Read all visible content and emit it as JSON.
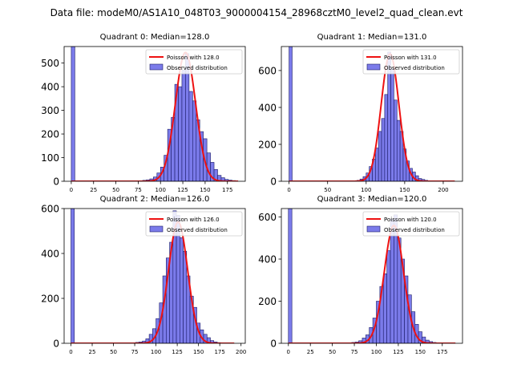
{
  "figure": {
    "suptitle": "Data file: modeM0/AS1A10_048T03_9000004154_28968cztM0_level2_quad_clean.evt",
    "colors": {
      "bar_fill": "#7b7bea",
      "bar_edge": "#1a1a66",
      "fit_line": "#ee1111",
      "axis": "#000000"
    }
  },
  "chart_data": [
    {
      "type": "bar",
      "title": "Quadrant 0: Median=128.0",
      "xlim": [
        -8,
        195
      ],
      "ylim": [
        0,
        570
      ],
      "xticks": [
        0,
        25,
        50,
        75,
        100,
        125,
        150,
        175
      ],
      "yticks": [
        0,
        100,
        200,
        300,
        400,
        500
      ],
      "bin_width": 4,
      "histogram": [
        {
          "x": 0,
          "count": 570
        },
        {
          "x": 80,
          "count": 4
        },
        {
          "x": 84,
          "count": 6
        },
        {
          "x": 88,
          "count": 10
        },
        {
          "x": 92,
          "count": 18
        },
        {
          "x": 96,
          "count": 35
        },
        {
          "x": 100,
          "count": 60
        },
        {
          "x": 104,
          "count": 110
        },
        {
          "x": 108,
          "count": 220
        },
        {
          "x": 112,
          "count": 270
        },
        {
          "x": 116,
          "count": 410
        },
        {
          "x": 120,
          "count": 400
        },
        {
          "x": 124,
          "count": 470
        },
        {
          "x": 128,
          "count": 540
        },
        {
          "x": 132,
          "count": 380
        },
        {
          "x": 136,
          "count": 340
        },
        {
          "x": 140,
          "count": 260
        },
        {
          "x": 144,
          "count": 210
        },
        {
          "x": 148,
          "count": 180
        },
        {
          "x": 152,
          "count": 120
        },
        {
          "x": 156,
          "count": 80
        },
        {
          "x": 160,
          "count": 50
        },
        {
          "x": 164,
          "count": 25
        },
        {
          "x": 168,
          "count": 15
        },
        {
          "x": 172,
          "count": 8
        },
        {
          "x": 176,
          "count": 5
        },
        {
          "x": 180,
          "count": 3
        }
      ],
      "poisson": {
        "mean": 128.0,
        "peak": 545,
        "x_range": [
          0,
          187
        ]
      },
      "legend": {
        "line": "Poisson with 128.0",
        "bars": "Observed distribution",
        "position": "top-right"
      }
    },
    {
      "type": "bar",
      "title": "Quadrant 1: Median=131.0",
      "xlim": [
        -10,
        225
      ],
      "ylim": [
        0,
        730
      ],
      "xticks": [
        0,
        50,
        100,
        150,
        200
      ],
      "yticks": [
        0,
        200,
        400,
        600
      ],
      "bin_width": 4,
      "histogram": [
        {
          "x": 0,
          "count": 730
        },
        {
          "x": 88,
          "count": 5
        },
        {
          "x": 92,
          "count": 12
        },
        {
          "x": 96,
          "count": 25
        },
        {
          "x": 100,
          "count": 45
        },
        {
          "x": 104,
          "count": 80
        },
        {
          "x": 108,
          "count": 120
        },
        {
          "x": 112,
          "count": 180
        },
        {
          "x": 116,
          "count": 270
        },
        {
          "x": 120,
          "count": 340
        },
        {
          "x": 124,
          "count": 470
        },
        {
          "x": 128,
          "count": 700
        },
        {
          "x": 132,
          "count": 610
        },
        {
          "x": 136,
          "count": 440
        },
        {
          "x": 140,
          "count": 330
        },
        {
          "x": 144,
          "count": 270
        },
        {
          "x": 148,
          "count": 175
        },
        {
          "x": 152,
          "count": 110
        },
        {
          "x": 156,
          "count": 70
        },
        {
          "x": 160,
          "count": 50
        },
        {
          "x": 164,
          "count": 30
        },
        {
          "x": 168,
          "count": 15
        },
        {
          "x": 172,
          "count": 10
        },
        {
          "x": 176,
          "count": 5
        },
        {
          "x": 180,
          "count": 3
        }
      ],
      "poisson": {
        "mean": 131.0,
        "peak": 690,
        "x_range": [
          0,
          215
        ]
      },
      "legend": {
        "line": "Poisson with 131.0",
        "bars": "Observed distribution",
        "position": "top-right"
      }
    },
    {
      "type": "bar",
      "title": "Quadrant 2: Median=126.0",
      "xlim": [
        -8,
        205
      ],
      "ylim": [
        0,
        600
      ],
      "xticks": [
        0,
        25,
        50,
        75,
        100,
        125,
        150,
        175,
        200
      ],
      "yticks": [
        0,
        200,
        400,
        600
      ],
      "bin_width": 4,
      "histogram": [
        {
          "x": 0,
          "count": 600
        },
        {
          "x": 76,
          "count": 4
        },
        {
          "x": 80,
          "count": 6
        },
        {
          "x": 84,
          "count": 10
        },
        {
          "x": 88,
          "count": 20
        },
        {
          "x": 92,
          "count": 40
        },
        {
          "x": 96,
          "count": 65
        },
        {
          "x": 100,
          "count": 110
        },
        {
          "x": 104,
          "count": 180
        },
        {
          "x": 108,
          "count": 300
        },
        {
          "x": 112,
          "count": 380
        },
        {
          "x": 116,
          "count": 450
        },
        {
          "x": 120,
          "count": 590
        },
        {
          "x": 124,
          "count": 570
        },
        {
          "x": 128,
          "count": 470
        },
        {
          "x": 132,
          "count": 410
        },
        {
          "x": 136,
          "count": 300
        },
        {
          "x": 140,
          "count": 210
        },
        {
          "x": 144,
          "count": 160
        },
        {
          "x": 148,
          "count": 90
        },
        {
          "x": 152,
          "count": 60
        },
        {
          "x": 156,
          "count": 40
        },
        {
          "x": 160,
          "count": 25
        },
        {
          "x": 164,
          "count": 12
        },
        {
          "x": 168,
          "count": 6
        },
        {
          "x": 172,
          "count": 3
        }
      ],
      "poisson": {
        "mean": 126.0,
        "peak": 540,
        "x_range": [
          0,
          192
        ]
      },
      "legend": {
        "line": "Poisson with 126.0",
        "bars": "Observed distribution",
        "position": "top-right"
      }
    },
    {
      "type": "bar",
      "title": "Quadrant 3: Median=120.0",
      "xlim": [
        -8,
        198
      ],
      "ylim": [
        0,
        640
      ],
      "xticks": [
        0,
        25,
        50,
        75,
        100,
        125,
        150,
        175
      ],
      "yticks": [
        0,
        200,
        400,
        600
      ],
      "bin_width": 4,
      "histogram": [
        {
          "x": 0,
          "count": 640
        },
        {
          "x": 72,
          "count": 4
        },
        {
          "x": 76,
          "count": 6
        },
        {
          "x": 80,
          "count": 12
        },
        {
          "x": 84,
          "count": 25
        },
        {
          "x": 88,
          "count": 40
        },
        {
          "x": 92,
          "count": 75
        },
        {
          "x": 96,
          "count": 120
        },
        {
          "x": 100,
          "count": 200
        },
        {
          "x": 104,
          "count": 270
        },
        {
          "x": 108,
          "count": 330
        },
        {
          "x": 112,
          "count": 440
        },
        {
          "x": 116,
          "count": 590
        },
        {
          "x": 120,
          "count": 610
        },
        {
          "x": 124,
          "count": 500
        },
        {
          "x": 128,
          "count": 400
        },
        {
          "x": 132,
          "count": 320
        },
        {
          "x": 136,
          "count": 230
        },
        {
          "x": 140,
          "count": 150
        },
        {
          "x": 144,
          "count": 90
        },
        {
          "x": 148,
          "count": 55
        },
        {
          "x": 152,
          "count": 30
        },
        {
          "x": 156,
          "count": 15
        },
        {
          "x": 160,
          "count": 8
        },
        {
          "x": 164,
          "count": 4
        }
      ],
      "poisson": {
        "mean": 120.0,
        "peak": 560,
        "x_range": [
          0,
          190
        ]
      },
      "legend": {
        "line": "Poisson with 120.0",
        "bars": "Observed distribution",
        "position": "top-right"
      }
    }
  ]
}
